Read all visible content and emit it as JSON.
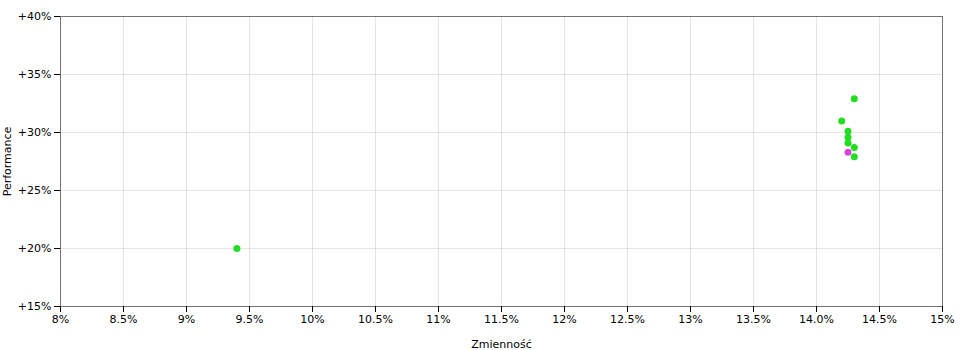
{
  "chart_data": {
    "type": "scatter",
    "xlabel": "Zmienność",
    "ylabel": "Performance",
    "xlim": [
      0.08,
      0.15
    ],
    "ylim": [
      0.15,
      0.4
    ],
    "xticks": [
      {
        "value": 0.08,
        "label": "8%"
      },
      {
        "value": 0.085,
        "label": "8.5%"
      },
      {
        "value": 0.09,
        "label": "9%"
      },
      {
        "value": 0.095,
        "label": "9.5%"
      },
      {
        "value": 0.1,
        "label": "10%"
      },
      {
        "value": 0.105,
        "label": "10.5%"
      },
      {
        "value": 0.11,
        "label": "11%"
      },
      {
        "value": 0.115,
        "label": "11.5%"
      },
      {
        "value": 0.12,
        "label": "12%"
      },
      {
        "value": 0.125,
        "label": "12.5%"
      },
      {
        "value": 0.13,
        "label": "13%"
      },
      {
        "value": 0.135,
        "label": "13.5%"
      },
      {
        "value": 0.14,
        "label": "14.0%"
      },
      {
        "value": 0.145,
        "label": "14.5%"
      },
      {
        "value": 0.15,
        "label": "15%"
      }
    ],
    "yticks": [
      {
        "value": 0.15,
        "label": "+15%"
      },
      {
        "value": 0.2,
        "label": "+20%"
      },
      {
        "value": 0.25,
        "label": "+25%"
      },
      {
        "value": 0.3,
        "label": "+30%"
      },
      {
        "value": 0.35,
        "label": "+35%"
      },
      {
        "value": 0.4,
        "label": "+40%"
      }
    ],
    "grid": true,
    "series": [
      {
        "color": "#22dd22",
        "x": [
          0.094,
          0.143,
          0.142,
          0.1425,
          0.1425,
          0.1425,
          0.143,
          0.143
        ],
        "values": [
          0.2,
          0.329,
          0.31,
          0.301,
          0.296,
          0.291,
          0.287,
          0.279
        ]
      },
      {
        "color": "#dd44dd",
        "x": [
          0.1425
        ],
        "values": [
          0.283
        ]
      }
    ]
  }
}
